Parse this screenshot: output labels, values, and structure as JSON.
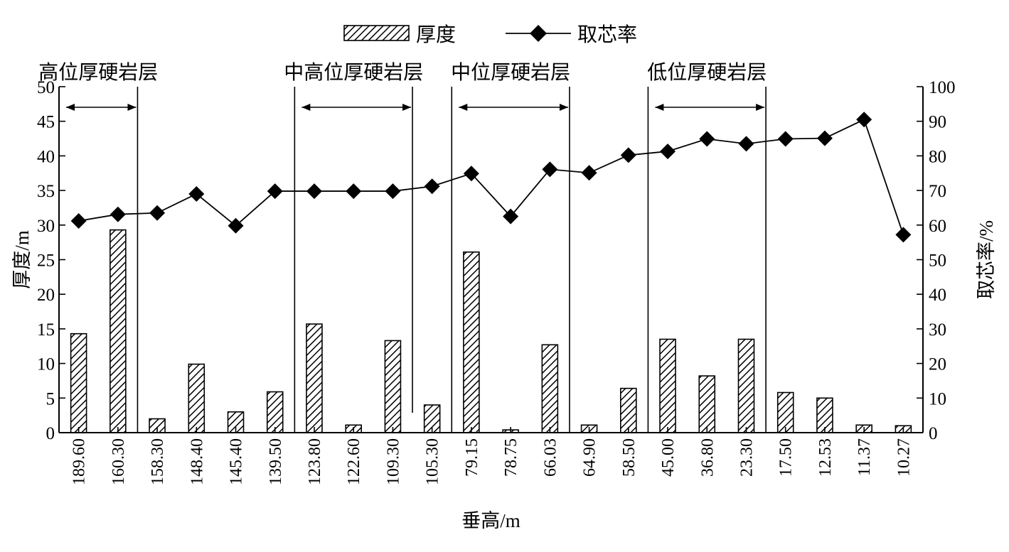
{
  "chart_data": {
    "type": "bar+line",
    "xlabel": "垂高/m",
    "ylabel_left": "厚度/m",
    "ylabel_right": "取芯率/%",
    "ylim_left": [
      0,
      50
    ],
    "ylim_right": [
      0,
      100
    ],
    "yticks_left": [
      "0",
      "5",
      "10",
      "15",
      "20",
      "25",
      "30",
      "35",
      "40",
      "45",
      "50"
    ],
    "yticks_right": [
      "0",
      "10",
      "20",
      "30",
      "40",
      "50",
      "60",
      "70",
      "80",
      "90",
      "100"
    ],
    "categories": [
      "189.60",
      "160.30",
      "158.30",
      "148.40",
      "145.40",
      "139.50",
      "123.80",
      "122.60",
      "109.30",
      "105.30",
      "79.15",
      "78.75",
      "66.03",
      "64.90",
      "58.50",
      "45.00",
      "36.80",
      "23.30",
      "17.50",
      "12.53",
      "11.37",
      "10.27"
    ],
    "series": [
      {
        "name": "厚度",
        "kind": "bar",
        "axis": "left",
        "values": [
          14.3,
          29.3,
          2.0,
          9.9,
          3.0,
          5.9,
          15.7,
          1.1,
          13.3,
          4.0,
          26.1,
          0.4,
          12.7,
          1.1,
          6.4,
          13.5,
          8.2,
          13.5,
          5.8,
          5.0,
          1.1,
          1.0
        ]
      },
      {
        "name": "取芯率",
        "kind": "line",
        "axis": "right",
        "values": [
          61.2,
          63.1,
          63.5,
          69.0,
          59.8,
          69.8,
          69.8,
          69.8,
          69.8,
          71.2,
          74.9,
          62.5,
          76.1,
          75.1,
          80.2,
          81.3,
          84.9,
          83.5,
          84.9,
          85.1,
          90.5,
          57.2
        ]
      }
    ],
    "legend": {
      "position": "top-center",
      "entries": [
        "厚度",
        "取芯率"
      ]
    },
    "annotations": [
      {
        "label": "高位厚硬岩层",
        "from_category": "189.60",
        "to_category": "160.30"
      },
      {
        "label": "中高位厚硬岩层",
        "from_category": "123.80",
        "to_category": "109.30"
      },
      {
        "label": "中位厚硬岩层",
        "from_category": "79.15",
        "to_category": "66.03"
      },
      {
        "label": "低位厚硬岩层",
        "from_category": "45.00",
        "to_category": "23.30"
      }
    ],
    "grid": false
  }
}
